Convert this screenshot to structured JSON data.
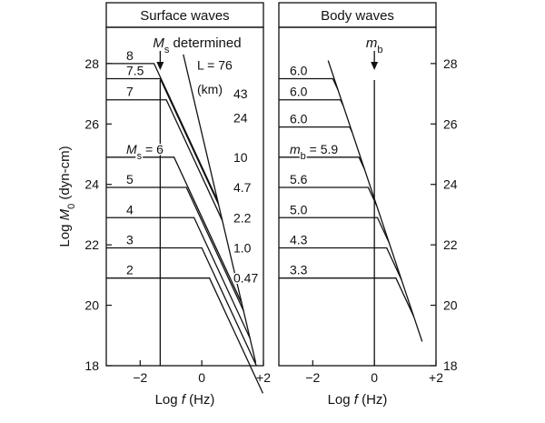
{
  "chart_data": [
    {
      "type": "line",
      "title": "Surface waves",
      "xlabel_prefix": "Log ",
      "xlabel_var": "f",
      "xlabel_suffix": " (Hz)",
      "ylabel_prefix": "Log ",
      "ylabel_var": "M",
      "ylabel_sub": "0",
      "ylabel_suffix": " (dyn-cm)",
      "xlim": [
        -3.1,
        2
      ],
      "ylim": [
        18,
        29.2
      ],
      "xticks": [
        -2,
        0,
        2
      ],
      "xtick_labels": [
        "−2",
        "0",
        "+2"
      ],
      "yticks": [
        18,
        20,
        22,
        24,
        26,
        28
      ],
      "ytick_labels": [
        "18",
        "20",
        "22",
        "24",
        "26",
        "28"
      ],
      "ytick_side": "left",
      "marker": {
        "x": -1.35,
        "label_var": "M",
        "label_sub": "s",
        "label_suffix": " determined"
      },
      "corner_line": {
        "x0": -0.6,
        "y0": 28.3,
        "x1": 1.75,
        "y1": 18.1
      },
      "spectra": [
        {
          "label": "8",
          "plateau": 28.0,
          "knee_x": -1.55
        },
        {
          "label": "7.5",
          "plateau": 27.5,
          "knee_x": -1.35
        },
        {
          "label": "7",
          "plateau": 26.8,
          "knee_x": -1.15
        },
        {
          "label_var": "M",
          "label_sub": "s",
          "label": " = 6",
          "plateau": 24.9,
          "knee_x": -0.9
        },
        {
          "label": "5",
          "plateau": 23.9,
          "knee_x": -0.5
        },
        {
          "label": "4",
          "plateau": 22.9,
          "knee_x": -0.25
        },
        {
          "label": "3",
          "plateau": 21.9,
          "knee_x": 0.0
        },
        {
          "label": "2",
          "plateau": 20.9,
          "knee_x": 0.25
        }
      ],
      "length_header": "L = 76",
      "length_unit": "(km)",
      "lengths": [
        {
          "value": "43",
          "y": 27.0
        },
        {
          "value": "24",
          "y": 26.2
        },
        {
          "value": "10",
          "y": 24.9
        },
        {
          "value": "4.7",
          "y": 23.9
        },
        {
          "value": "2.2",
          "y": 22.9
        },
        {
          "value": "1.0",
          "y": 21.9
        },
        {
          "value": "0.47",
          "y": 20.9
        }
      ]
    },
    {
      "type": "line",
      "title": "Body waves",
      "xlabel_prefix": "Log ",
      "xlabel_var": "f",
      "xlabel_suffix": " (Hz)",
      "xlim": [
        -3.1,
        2
      ],
      "ylim": [
        18,
        29.2
      ],
      "xticks": [
        -2,
        0,
        2
      ],
      "xtick_labels": [
        "−2",
        "0",
        "+2"
      ],
      "yticks": [
        18,
        20,
        22,
        24,
        26,
        28
      ],
      "ytick_labels": [
        "18",
        "20",
        "22",
        "24",
        "26",
        "28"
      ],
      "ytick_side": "right",
      "marker": {
        "x": 0.0,
        "label_var": "m",
        "label_sub": "b",
        "label_suffix": ""
      },
      "corner_line": {
        "x0": -1.5,
        "y0": 28.1,
        "x1": 1.55,
        "y1": 18.8
      },
      "spectra": [
        {
          "label": "6.0",
          "plateau": 27.5,
          "knee_x": -1.35
        },
        {
          "label": "6.0",
          "plateau": 26.8,
          "knee_x": -1.1
        },
        {
          "label": "6.0",
          "plateau": 25.9,
          "knee_x": -0.8
        },
        {
          "label_var": "m",
          "label_sub": "b",
          "label": " = 5.9",
          "plateau": 24.9,
          "knee_x": -0.5
        },
        {
          "label": "5.6",
          "plateau": 23.9,
          "knee_x": -0.2
        },
        {
          "label": "5.0",
          "plateau": 22.9,
          "knee_x": 0.1
        },
        {
          "label": "4.3",
          "plateau": 21.9,
          "knee_x": 0.4
        },
        {
          "label": "3.3",
          "plateau": 20.9,
          "knee_x": 0.7
        }
      ]
    }
  ]
}
